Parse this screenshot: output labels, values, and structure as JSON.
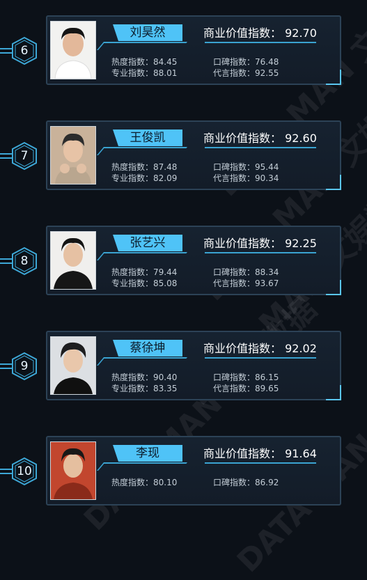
{
  "value_label": "商业价值指数：",
  "stat_labels": {
    "heat": "热度指数：",
    "reputation": "口碑指数：",
    "professional": "专业指数：",
    "endorsement": "代言指数："
  },
  "watermark": "DATA MAN 文娱数据",
  "colors": {
    "accent": "#4fc3f7",
    "card_border": "#2c4256",
    "background": "#0c1118"
  },
  "entries": [
    {
      "rank": "6",
      "name": "刘昊然",
      "value": "92.70",
      "heat": "84.45",
      "reputation": "76.48",
      "professional": "88.01",
      "endorsement": "92.55"
    },
    {
      "rank": "7",
      "name": "王俊凯",
      "value": "92.60",
      "heat": "87.48",
      "reputation": "95.44",
      "professional": "82.09",
      "endorsement": "90.34"
    },
    {
      "rank": "8",
      "name": "张艺兴",
      "value": "92.25",
      "heat": "79.44",
      "reputation": "88.34",
      "professional": "85.08",
      "endorsement": "93.67"
    },
    {
      "rank": "9",
      "name": "蔡徐坤",
      "value": "92.02",
      "heat": "90.40",
      "reputation": "86.15",
      "professional": "83.35",
      "endorsement": "89.65"
    },
    {
      "rank": "10",
      "name": "李现",
      "value": "91.64",
      "heat": "80.10",
      "reputation": "86.92",
      "professional": "",
      "endorsement": ""
    }
  ]
}
